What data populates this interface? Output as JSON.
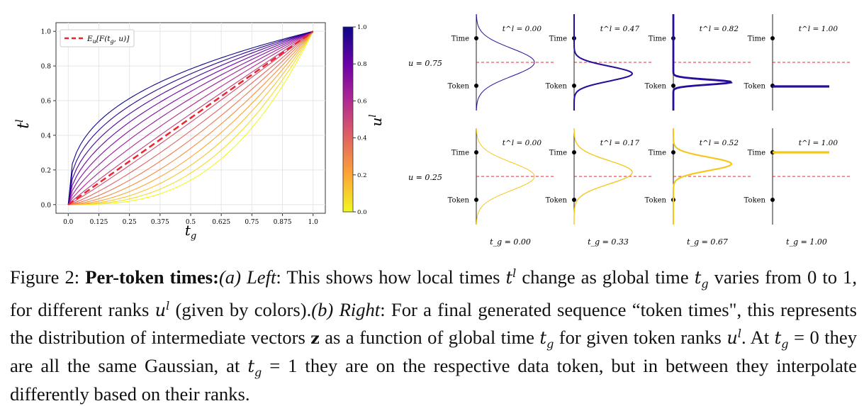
{
  "chart_data": [
    {
      "type": "line",
      "xlabel": "t_g",
      "ylabel": "t^l",
      "xlim": [
        -0.05,
        1.05
      ],
      "ylim": [
        -0.05,
        1.05
      ],
      "x_ticks": [
        "0.0",
        "0.125",
        "0.25",
        "0.375",
        "0.5",
        "0.625",
        "0.75",
        "0.875",
        "1.0"
      ],
      "y_ticks": [
        "0.0",
        "0.2",
        "0.4",
        "0.6",
        "0.8",
        "1.0"
      ],
      "grid": true,
      "legend_position": "top-left",
      "legend": "E_u[F(t_g, u)]",
      "mean_line": {
        "x": [
          0,
          1
        ],
        "y": [
          0,
          1
        ],
        "style": "dashed",
        "color": "#e8262c"
      },
      "family": "t^l = t_g^p, p = 2^(3(0.5-u)), u = 0..1 in steps of 1/15",
      "u_values": [
        0,
        0.0667,
        0.1333,
        0.2,
        0.2667,
        0.3333,
        0.4,
        0.4667,
        0.5333,
        0.6,
        0.6667,
        0.7333,
        0.8,
        0.8667,
        0.9333,
        1.0
      ],
      "colorbar": {
        "label": "u^l",
        "ticks": [
          "0.0",
          "0.2",
          "0.4",
          "0.6",
          "0.8",
          "1.0"
        ],
        "range": [
          0,
          1
        ],
        "colormap": "plasma_r"
      }
    },
    {
      "type": "line",
      "rows": [
        {
          "label": "u = 0.75",
          "color": "#2a0c9a",
          "panels": [
            {
              "tl": "t^l = 0.00",
              "tl_value": 0.0
            },
            {
              "tl": "t^l = 0.47",
              "tl_value": 0.47
            },
            {
              "tl": "t^l = 0.82",
              "tl_value": 0.82
            },
            {
              "tl": "t^l = 1.00",
              "tl_value": 1.0
            }
          ]
        },
        {
          "label": "u = 0.25",
          "color": "#f5c71b",
          "panels": [
            {
              "tl": "t^l = 0.00",
              "tl_value": 0.0
            },
            {
              "tl": "t^l = 0.17",
              "tl_value": 0.17
            },
            {
              "tl": "t^l = 0.52",
              "tl_value": 0.52
            },
            {
              "tl": "t^l = 1.00",
              "tl_value": 1.0
            }
          ]
        }
      ],
      "axis_labels": {
        "time": "Time",
        "token": "Token"
      },
      "columns": [
        "t_g = 0.00",
        "t_g = 0.33",
        "t_g = 0.67",
        "t_g = 1.00"
      ]
    }
  ],
  "caption": {
    "figure_label": "Figure 2:",
    "title": "Per-token times:",
    "part_a": "(a) Left",
    "part_b": "(b) Right"
  }
}
